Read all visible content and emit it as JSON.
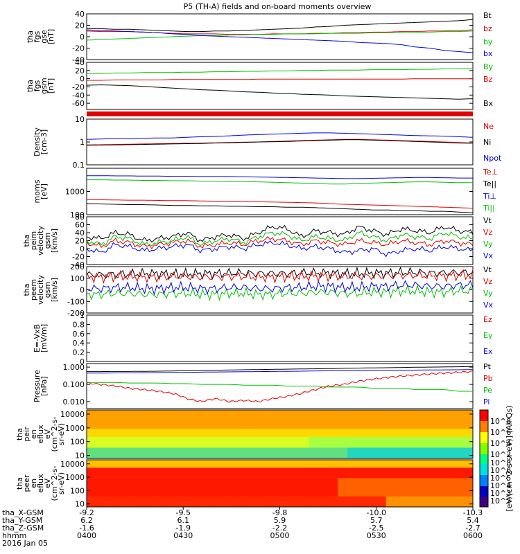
{
  "title": "P5 (TH-A) fields and on-board moments overview",
  "colors": {
    "black": "#000000",
    "red": "#e00000",
    "green": "#00c000",
    "blue": "#0000e0"
  },
  "chart_data": [
    {
      "type": "line",
      "id": "p1",
      "ylabel": [
        "tha",
        "fgs",
        "gse",
        "[nT]"
      ],
      "yticks": [
        40,
        20,
        0,
        -20,
        -40
      ],
      "ylim": [
        -40,
        40
      ],
      "series": [
        {
          "name": "Bt",
          "color": "black",
          "values": [
            14,
            14,
            13,
            13,
            12,
            11,
            10,
            9,
            9,
            10,
            10,
            11,
            12,
            13,
            14,
            15,
            17,
            18,
            20,
            21,
            22,
            23,
            24,
            25,
            26,
            27,
            28,
            30
          ]
        },
        {
          "name": "bz",
          "color": "red",
          "values": [
            10,
            9,
            9,
            9,
            8,
            7,
            6,
            5,
            5,
            5,
            4,
            4,
            4,
            5,
            5,
            5,
            6,
            6,
            7,
            7,
            8,
            8,
            9,
            9,
            10,
            10,
            11,
            12
          ]
        },
        {
          "name": "by",
          "color": "green",
          "values": [
            -6,
            -5,
            -4,
            -3,
            -2,
            -1,
            0,
            1,
            2,
            2,
            3,
            3,
            4,
            4,
            5,
            5,
            5,
            6,
            6,
            6,
            7,
            7,
            8,
            8,
            8,
            9,
            9,
            10
          ]
        },
        {
          "name": "bx",
          "color": "blue",
          "values": [
            12,
            11,
            10,
            9,
            8,
            7,
            5,
            4,
            2,
            1,
            0,
            -1,
            -2,
            -3,
            -4,
            -5,
            -6,
            -7,
            -8,
            -10,
            -11,
            -12,
            -14,
            -18,
            -20,
            -24,
            -26,
            -28
          ]
        }
      ]
    },
    {
      "type": "line",
      "id": "p2",
      "ylabel": [
        "tha",
        "fgs",
        "gsm",
        "[nT]"
      ],
      "yticks": [
        40,
        20,
        0,
        -20,
        -40,
        -60
      ],
      "ylim": [
        -75,
        40
      ],
      "series": [
        {
          "name": "By",
          "color": "green",
          "values": [
            13,
            13,
            14,
            14,
            15,
            15,
            15,
            16,
            16,
            17,
            17,
            18,
            18,
            19,
            19,
            20,
            20,
            21,
            21,
            21,
            22,
            22,
            22,
            23,
            23,
            24,
            24,
            25
          ]
        },
        {
          "name": "Bz",
          "color": "red",
          "values": [
            -4,
            -4,
            -3,
            -3,
            -3,
            -3,
            -2,
            -2,
            -2,
            -2,
            -2,
            -2,
            -1,
            -1,
            -1,
            -1,
            -1,
            -1,
            -1,
            -1,
            -1,
            -1,
            -1,
            0,
            0,
            0,
            0,
            0
          ]
        },
        {
          "name": "Bx",
          "color": "black",
          "values": [
            -16,
            -15,
            -16,
            -17,
            -19,
            -21,
            -23,
            -25,
            -27,
            -28,
            -30,
            -32,
            -33,
            -35,
            -36,
            -38,
            -39,
            -40,
            -42,
            -43,
            -44,
            -45,
            -46,
            -47,
            -48,
            -49,
            -50,
            -49
          ]
        }
      ]
    },
    {
      "type": "line",
      "id": "p3",
      "yscale": "log",
      "ylabel": [
        "Density",
        "[cm-3]"
      ],
      "yticks": [
        10.0,
        1.0,
        0.1
      ],
      "ylim": [
        0.1,
        10
      ],
      "series": [
        {
          "name": "Ne",
          "color": "red",
          "values": [
            0.75,
            0.76,
            0.78,
            0.8,
            0.82,
            0.84,
            0.86,
            0.88,
            0.9,
            0.92,
            0.95,
            0.98,
            1.0,
            1.05,
            1.1,
            1.15,
            1.2,
            1.25,
            1.3,
            1.3,
            1.25,
            1.2,
            1.15,
            1.1,
            1.05,
            1.0,
            0.95,
            0.9
          ]
        },
        {
          "name": "Ni",
          "color": "black",
          "values": [
            0.72,
            0.73,
            0.74,
            0.76,
            0.78,
            0.8,
            0.82,
            0.84,
            0.86,
            0.9,
            0.92,
            0.96,
            1.0,
            1.02,
            1.05,
            1.1,
            1.15,
            1.2,
            1.25,
            1.25,
            1.2,
            1.15,
            1.1,
            1.05,
            1.0,
            0.95,
            0.9,
            0.88
          ]
        },
        {
          "name": "Npot",
          "color": "blue",
          "values": [
            1.3,
            1.35,
            1.4,
            1.4,
            1.45,
            1.5,
            1.5,
            1.6,
            1.7,
            1.75,
            1.85,
            2.0,
            2.1,
            2.2,
            2.3,
            2.4,
            2.5,
            2.5,
            2.4,
            2.3,
            2.2,
            2.1,
            2.0,
            1.9,
            1.85,
            1.8,
            1.7,
            1.6
          ]
        }
      ]
    },
    {
      "type": "line",
      "id": "p4",
      "yscale": "log",
      "ylabel": [
        "moms",
        "[eV]"
      ],
      "yticks": [
        1000,
        100
      ],
      "ylim": [
        100,
        10000
      ],
      "series": [
        {
          "name": "Te⊥",
          "color": "red",
          "values": [
            450,
            440,
            430,
            420,
            420,
            410,
            400,
            400,
            390,
            380,
            380,
            370,
            360,
            350,
            340,
            330,
            320,
            300,
            280,
            270,
            260,
            250,
            240,
            230,
            220,
            210,
            200,
            190
          ]
        },
        {
          "name": "Te||",
          "color": "black",
          "values": [
            300,
            290,
            280,
            270,
            270,
            260,
            250,
            250,
            240,
            240,
            230,
            230,
            220,
            220,
            210,
            210,
            200,
            190,
            180,
            170,
            160,
            160,
            150,
            150,
            140,
            140,
            130,
            120
          ]
        },
        {
          "name": "Ti⊥",
          "color": "blue",
          "values": [
            4800,
            4800,
            4700,
            4700,
            4600,
            4600,
            4500,
            4500,
            4400,
            4400,
            4400,
            4300,
            4200,
            4100,
            4000,
            3900,
            3800,
            3700,
            3600,
            3600,
            3700,
            3800,
            3900,
            4000,
            4000,
            3900,
            3800,
            3800
          ]
        },
        {
          "name": "Ti||",
          "color": "green",
          "values": [
            3200,
            3200,
            3100,
            3100,
            3000,
            3000,
            2900,
            2900,
            2800,
            2800,
            2700,
            2700,
            2600,
            2500,
            2400,
            2300,
            2200,
            2100,
            2100,
            2200,
            2300,
            2400,
            2500,
            2600,
            2600,
            2500,
            2400,
            2400
          ]
        }
      ]
    },
    {
      "type": "line",
      "id": "p5",
      "ylabel": [
        "tha",
        "peim",
        "velocity",
        "gsm",
        "[km/s]"
      ],
      "yticks": [
        80,
        60,
        40,
        20,
        0,
        -20,
        -40
      ],
      "ylim": [
        -40,
        80
      ],
      "series": [
        {
          "name": "Vt",
          "color": "black",
          "values": [
            30,
            25,
            40,
            35,
            20,
            25,
            30,
            40,
            20,
            30,
            35,
            25,
            40,
            55,
            50,
            30,
            45,
            40,
            35,
            55,
            45,
            35,
            50,
            45,
            40,
            55,
            45,
            40
          ]
        },
        {
          "name": "Vz",
          "color": "red",
          "values": [
            15,
            5,
            20,
            15,
            5,
            10,
            15,
            20,
            5,
            10,
            15,
            10,
            20,
            25,
            20,
            10,
            20,
            15,
            10,
            20,
            15,
            10,
            20,
            15,
            10,
            20,
            15,
            10
          ]
        },
        {
          "name": "Vy",
          "color": "green",
          "values": [
            20,
            10,
            30,
            25,
            10,
            15,
            20,
            30,
            10,
            20,
            25,
            15,
            30,
            40,
            35,
            20,
            30,
            25,
            20,
            40,
            30,
            20,
            35,
            30,
            25,
            40,
            30,
            25
          ]
        },
        {
          "name": "Vx",
          "color": "blue",
          "values": [
            0,
            -10,
            10,
            5,
            -5,
            0,
            5,
            10,
            -5,
            0,
            5,
            0,
            10,
            15,
            10,
            0,
            5,
            0,
            -10,
            -5,
            0,
            -15,
            -5,
            0,
            -5,
            5,
            0,
            -5
          ]
        }
      ]
    },
    {
      "type": "line",
      "id": "p6",
      "ylabel": [
        "tha",
        "peem",
        "velocity",
        "gsm",
        "[km/s]"
      ],
      "yticks": [
        200,
        100,
        0,
        -100,
        -200
      ],
      "ylim": [
        -200,
        200
      ],
      "series": [
        {
          "name": "Vt",
          "color": "black",
          "values": [
            130,
            130,
            135,
            135,
            140,
            140,
            135,
            135,
            140,
            140,
            145,
            145,
            140,
            140,
            140,
            145,
            145,
            145,
            140,
            140,
            145,
            145,
            150,
            150,
            145,
            145,
            150,
            150
          ]
        },
        {
          "name": "Vz",
          "color": "red",
          "values": [
            110,
            110,
            115,
            115,
            110,
            110,
            115,
            115,
            110,
            110,
            115,
            115,
            110,
            110,
            115,
            115,
            120,
            120,
            115,
            115,
            120,
            120,
            125,
            125,
            120,
            120,
            125,
            125
          ]
        },
        {
          "name": "Vy",
          "color": "green",
          "values": [
            -40,
            -40,
            -30,
            -30,
            -40,
            -40,
            -30,
            -30,
            -40,
            -40,
            -30,
            -30,
            -40,
            -40,
            -30,
            -30,
            -20,
            -20,
            -30,
            -30,
            -20,
            -20,
            -10,
            -10,
            -20,
            -20,
            -10,
            -10
          ]
        },
        {
          "name": "Vx",
          "color": "blue",
          "values": [
            10,
            10,
            20,
            20,
            10,
            10,
            20,
            20,
            10,
            10,
            20,
            20,
            10,
            10,
            20,
            20,
            30,
            30,
            20,
            20,
            30,
            30,
            40,
            40,
            30,
            30,
            40,
            40
          ]
        }
      ]
    },
    {
      "type": "line",
      "id": "p7",
      "ylabel": [
        "E=-VxB",
        "[mV/m]"
      ],
      "yticks": [
        1.0,
        0.8,
        0.6,
        0.4,
        0.2,
        0.0
      ],
      "ylim": [
        0,
        1
      ],
      "series": [
        {
          "name": "Ez",
          "color": "red",
          "values": []
        },
        {
          "name": "Ey",
          "color": "green",
          "values": []
        },
        {
          "name": "Ex",
          "color": "blue",
          "values": []
        }
      ]
    },
    {
      "type": "line",
      "id": "p8",
      "yscale": "log",
      "ylabel": [
        "Pressure",
        "[nPa]"
      ],
      "yticks": [
        1.0,
        0.1,
        0.01
      ],
      "ytick_labels": [
        "1.000",
        "0.100",
        "0.010"
      ],
      "ylim": [
        0.004,
        1.6
      ],
      "series": [
        {
          "name": "Pt",
          "color": "black",
          "values": [
            0.55,
            0.55,
            0.56,
            0.56,
            0.57,
            0.58,
            0.6,
            0.62,
            0.64,
            0.66,
            0.68,
            0.7,
            0.72,
            0.74,
            0.76,
            0.78,
            0.8,
            0.82,
            0.85,
            0.88,
            0.9,
            0.92,
            0.95,
            0.98,
            1.0,
            1.02,
            1.05,
            1.08
          ]
        },
        {
          "name": "Pb",
          "color": "red",
          "values": [
            0.12,
            0.1,
            0.08,
            0.06,
            0.05,
            0.04,
            0.03,
            0.015,
            0.01,
            0.015,
            0.01,
            0.012,
            0.01,
            0.015,
            0.02,
            0.03,
            0.05,
            0.08,
            0.1,
            0.15,
            0.2,
            0.25,
            0.3,
            0.35,
            0.4,
            0.45,
            0.5,
            0.55
          ]
        },
        {
          "name": "Pe",
          "color": "green",
          "values": [
            0.13,
            0.13,
            0.13,
            0.12,
            0.12,
            0.12,
            0.11,
            0.11,
            0.1,
            0.1,
            0.1,
            0.09,
            0.09,
            0.09,
            0.08,
            0.08,
            0.08,
            0.07,
            0.07,
            0.07,
            0.06,
            0.06,
            0.06,
            0.05,
            0.05,
            0.05,
            0.04,
            0.04
          ]
        },
        {
          "name": "Pi",
          "color": "blue",
          "values": [
            0.45,
            0.45,
            0.46,
            0.46,
            0.47,
            0.48,
            0.49,
            0.5,
            0.51,
            0.52,
            0.53,
            0.54,
            0.55,
            0.56,
            0.57,
            0.58,
            0.6,
            0.61,
            0.62,
            0.63,
            0.64,
            0.65,
            0.66,
            0.67,
            0.68,
            0.69,
            0.7,
            0.72
          ]
        }
      ]
    },
    {
      "type": "heatmap",
      "id": "p9",
      "ylabel": [
        "tha",
        "peir",
        "en",
        "eflux",
        "eV",
        "(cm^2-s-",
        "sr-eV)"
      ],
      "yticks": [
        10000,
        1000,
        100,
        10
      ],
      "ytick_labels": [
        "10000",
        "1000",
        "100",
        "10"
      ]
    },
    {
      "type": "heatmap",
      "id": "p10",
      "ylabel": [
        "tha",
        "peer",
        "en",
        "eflux",
        "eV",
        "(cm^2-s-",
        "sr-eV)"
      ],
      "yticks": [
        10000,
        1000,
        100,
        10
      ],
      "ytick_labels": [
        "10000",
        "1000",
        "100",
        "10"
      ]
    }
  ],
  "colorbar": {
    "label": "[eV/(cm^2-s-sr-eV)] (All Qs)",
    "ticks_top": [
      "10^8",
      "10^6",
      "10^4",
      "10^2"
    ],
    "ticks_bottom": [
      "10^8",
      "10^6",
      "10^5",
      "10^4",
      "10^3",
      "10^2"
    ]
  },
  "xaxis": {
    "row_labels": [
      "tha_X-GSM",
      "tha_Y-GSM",
      "tha_Z-GSM",
      "hhmm",
      "2016 Jan 05"
    ],
    "ticks": [
      {
        "x": "-9.2",
        "y": "6.2",
        "z": "-1.6",
        "t": "0400"
      },
      {
        "x": "-9.5",
        "y": "6.1",
        "z": "-1.9",
        "t": "0430"
      },
      {
        "x": "-9.8",
        "y": "5.9",
        "z": "-2.2",
        "t": "0500"
      },
      {
        "x": "-10.0",
        "y": "5.7",
        "z": "-2.5",
        "t": "0530"
      },
      {
        "x": "-10.3",
        "y": "5.4",
        "z": "-2.7",
        "t": "0600"
      }
    ]
  }
}
